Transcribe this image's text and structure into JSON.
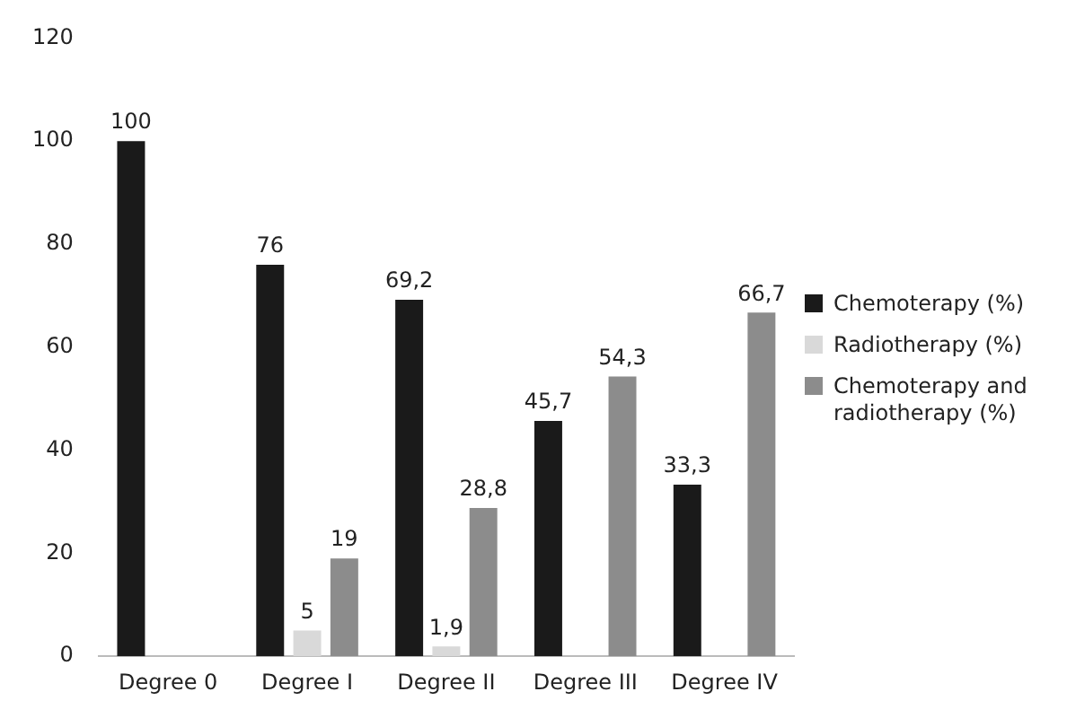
{
  "chart_data": {
    "type": "bar",
    "categories": [
      "Degree 0",
      "Degree I",
      "Degree II",
      "Degree III",
      "Degree IV"
    ],
    "series": [
      {
        "name": "Chemoterapy (%)",
        "color": "#1a1a1a",
        "values": [
          100,
          76,
          69.2,
          45.7,
          33.3
        ],
        "value_labels": [
          "100",
          "76",
          "69,2",
          "45,7",
          "33,3"
        ]
      },
      {
        "name": "Radiotherapy (%)",
        "color": "#d9d9d9",
        "values": [
          null,
          5,
          1.9,
          null,
          null
        ],
        "value_labels": [
          null,
          "5",
          "1,9",
          null,
          null
        ]
      },
      {
        "name": "Chemoterapy and radiotherapy (%)",
        "color": "#8c8c8c",
        "values": [
          null,
          19,
          28.8,
          54.3,
          66.7
        ],
        "value_labels": [
          null,
          "19",
          "28,8",
          "54,3",
          "66,7"
        ]
      }
    ],
    "ylim": [
      0,
      120
    ],
    "yticks": [
      0,
      20,
      40,
      60,
      80,
      100,
      120
    ],
    "grid": false,
    "legend": "right"
  }
}
